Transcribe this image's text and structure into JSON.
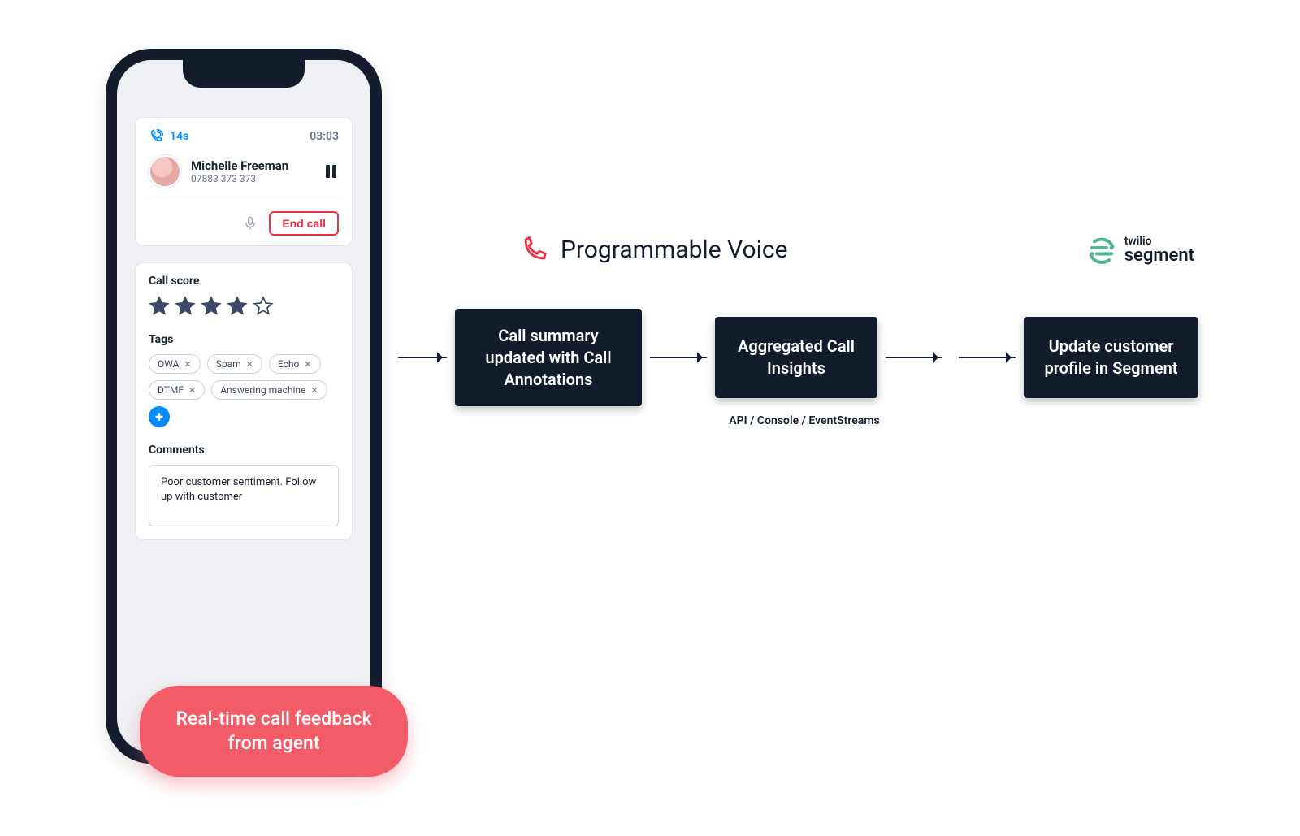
{
  "colors": {
    "navy": "#121c2d",
    "red": "#f22f46",
    "badge": "#f45b69",
    "blue": "#008cff",
    "segment_green": "#4fb58b",
    "star_fill": "#394762",
    "star_empty_stroke": "#394762",
    "grey_text": "#6b7385",
    "border": "#e1e4ea"
  },
  "phone": {
    "call": {
      "duration": "14s",
      "clock": "03:03",
      "caller_name": "Michelle Freeman",
      "caller_number": "07883 373 373",
      "end_label": "End call"
    },
    "score": {
      "title": "Call score",
      "rating": 4,
      "max": 5
    },
    "tags": {
      "title": "Tags",
      "items": [
        "OWA",
        "Spam",
        "Echo",
        "DTMF",
        "Answering machine"
      ]
    },
    "comments": {
      "title": "Comments",
      "text": "Poor customer sentiment. Follow up with customer"
    }
  },
  "realtime_badge": "Real-time call feedback from agent",
  "flow": {
    "header": "Programmable Voice",
    "segment_brand_top": "twilio",
    "segment_brand_bottom": "segment",
    "boxes": {
      "b1": "Call summary updated with Call Annotations",
      "b2": "Aggregated Call Insights",
      "b3": "Update customer profile in Segment"
    },
    "sublabel": "API / Console / EventStreams"
  }
}
